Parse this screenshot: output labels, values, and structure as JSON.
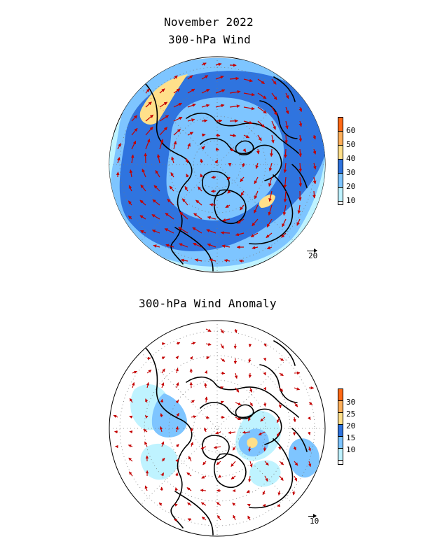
{
  "header": {
    "title": "November 2022"
  },
  "colors": {
    "band_10_20": "#bff3ff",
    "band_20_30": "#7ec5ff",
    "band_30_40": "#2f74df",
    "band_40_50": "#ffe08a",
    "band_50_60": "#ffb05a",
    "band_60_plus": "#ff6a16",
    "vector": "#c40000",
    "coast": "#000000",
    "grid": "#777777"
  },
  "panels": [
    {
      "name": "upper-wind-map",
      "title": "300-hPa Wind",
      "legend_ticks": [
        "60",
        "50",
        "40",
        "30",
        "20",
        "10"
      ],
      "reference_vector_label": "20"
    },
    {
      "name": "lower-anomaly-map",
      "title": "300-hPa Wind Anomaly",
      "legend_ticks": [
        "30",
        "25",
        "20",
        "15",
        "10"
      ],
      "reference_vector_label": "10"
    }
  ]
}
